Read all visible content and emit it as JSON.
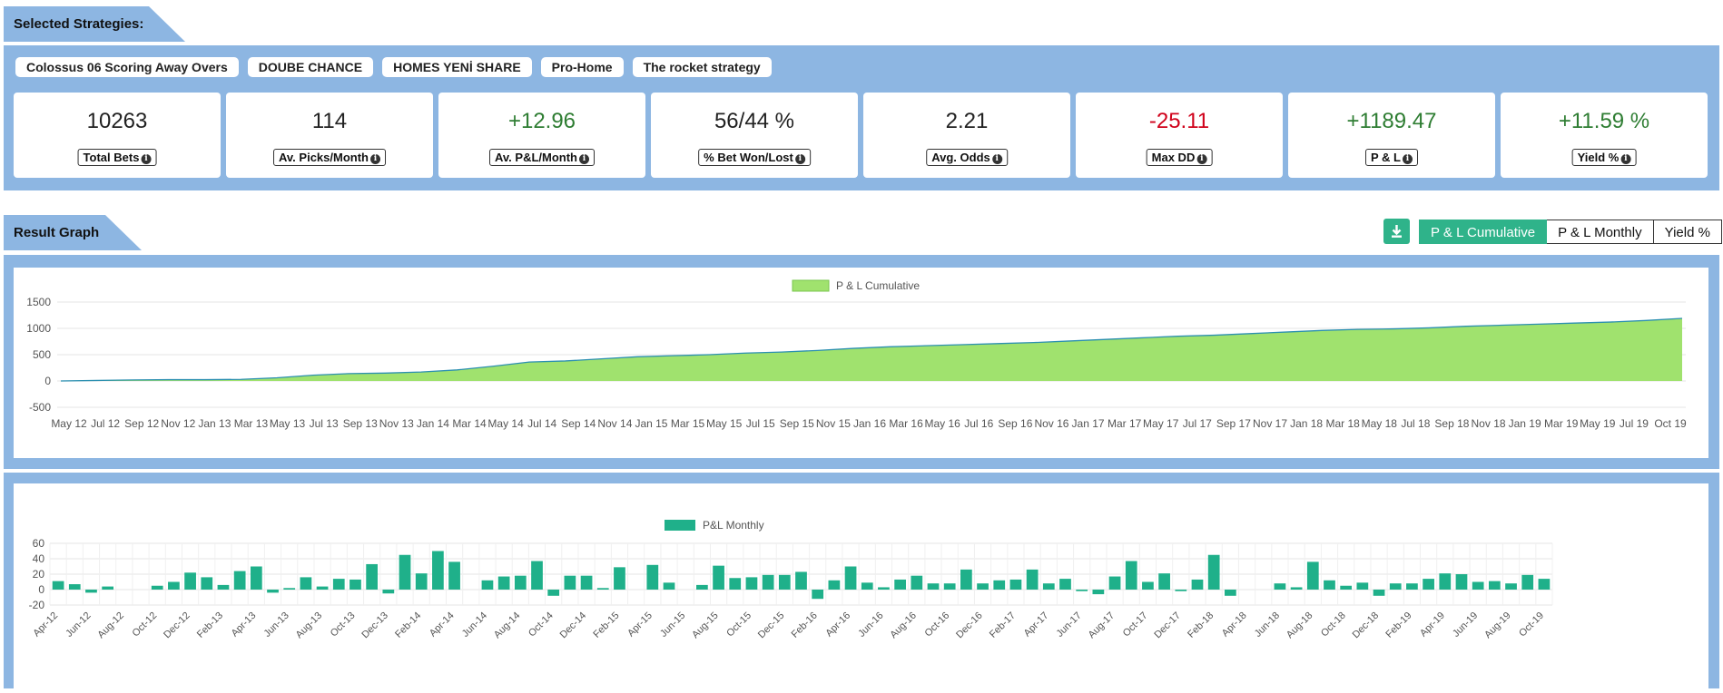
{
  "sections": {
    "strategies_title": "Selected Strategies:",
    "graph_title": "Result Graph"
  },
  "strategies": [
    "Colossus 06 Scoring Away Overs",
    "DOUBE CHANCE",
    "HOMES YENİ SHARE",
    "Pro-Home",
    "The rocket strategy"
  ],
  "stats": [
    {
      "value": "10263",
      "label": "Total Bets",
      "tone": "neutral"
    },
    {
      "value": "114",
      "label": "Av. Picks/Month",
      "tone": "neutral"
    },
    {
      "value": "+12.96",
      "label": "Av. P&L/Month",
      "tone": "positive"
    },
    {
      "value": "56/44 %",
      "label": "% Bet Won/Lost",
      "tone": "neutral"
    },
    {
      "value": "2.21",
      "label": "Avg. Odds",
      "tone": "neutral"
    },
    {
      "value": "-25.11",
      "label": "Max DD",
      "tone": "negative"
    },
    {
      "value": "+1189.47",
      "label": "P & L",
      "tone": "positive"
    },
    {
      "value": "+11.59 %",
      "label": "Yield %",
      "tone": "positive"
    }
  ],
  "graph_controls": {
    "download_icon": "download-icon",
    "buttons": [
      "P & L Cumulative",
      "P & L Monthly",
      "Yield %"
    ],
    "active": "P & L Cumulative"
  },
  "colors": {
    "accent": "#2fb38a",
    "panel": "#8db6e2",
    "positive": "#2e7d32",
    "negative": "#d0021b",
    "area_fill": "#a0e26e",
    "area_line": "#2b8fb0",
    "bar": "#1fb08a"
  },
  "chart_data": [
    {
      "type": "area",
      "legend": "P & L Cumulative",
      "legend_position": "top-center",
      "grid": true,
      "ylim": [
        -500,
        1500
      ],
      "yticks": [
        1500,
        1000,
        500,
        0,
        -500
      ],
      "xticks": [
        "May 12",
        "Jul 12",
        "Sep 12",
        "Nov 12",
        "Jan 13",
        "Mar 13",
        "May 13",
        "Jul 13",
        "Sep 13",
        "Nov 13",
        "Jan 14",
        "Mar 14",
        "May 14",
        "Jul 14",
        "Sep 14",
        "Nov 14",
        "Jan 15",
        "Mar 15",
        "May 15",
        "Jul 15",
        "Sep 15",
        "Nov 15",
        "Jan 16",
        "Mar 16",
        "May 16",
        "Jul 16",
        "Sep 16",
        "Nov 16",
        "Jan 17",
        "Mar 17",
        "May 17",
        "Jul 17",
        "Sep 17",
        "Nov 17",
        "Jan 18",
        "Mar 18",
        "May 18",
        "Jul 18",
        "Sep 18",
        "Nov 18",
        "Jan 19",
        "Mar 19",
        "May 19",
        "Jul 19",
        "Oct 19"
      ],
      "x": [
        "Apr 12",
        "May 12",
        "Jul 12",
        "Sep 12",
        "Nov 12",
        "Jan 13",
        "Mar 13",
        "May 13",
        "Jul 13",
        "Sep 13",
        "Nov 13",
        "Jan 14",
        "Mar 14",
        "May 14",
        "Jul 14",
        "Sep 14",
        "Nov 14",
        "Jan 15",
        "Mar 15",
        "May 15",
        "Jul 15",
        "Sep 15",
        "Nov 15",
        "Jan 16",
        "Mar 16",
        "May 16",
        "Jul 16",
        "Sep 16",
        "Nov 16",
        "Jan 17",
        "Mar 17",
        "May 17",
        "Jul 17",
        "Sep 17",
        "Nov 17",
        "Jan 18",
        "Mar 18",
        "May 18",
        "Jul 18",
        "Sep 18",
        "Nov 18",
        "Jan 19",
        "Mar 19",
        "May 19",
        "Jul 19",
        "Oct 19"
      ],
      "values": [
        0,
        10,
        20,
        25,
        25,
        30,
        60,
        110,
        140,
        150,
        170,
        210,
        280,
        360,
        380,
        420,
        460,
        480,
        500,
        530,
        550,
        580,
        620,
        650,
        670,
        690,
        710,
        730,
        760,
        790,
        820,
        850,
        870,
        900,
        930,
        960,
        980,
        990,
        1010,
        1040,
        1060,
        1080,
        1100,
        1120,
        1150,
        1189
      ]
    },
    {
      "type": "bar",
      "legend": "P&L Monthly",
      "legend_position": "top-center",
      "grid": true,
      "ylim": [
        -20,
        60
      ],
      "yticks": [
        60,
        40,
        20,
        0,
        -20
      ],
      "categories": [
        "Apr-12",
        "May-12",
        "Jun-12",
        "Jul-12",
        "Aug-12",
        "Sep-12",
        "Oct-12",
        "Nov-12",
        "Dec-12",
        "Jan-13",
        "Feb-13",
        "Mar-13",
        "Apr-13",
        "May-13",
        "Jun-13",
        "Jul-13",
        "Aug-13",
        "Sep-13",
        "Oct-13",
        "Nov-13",
        "Dec-13",
        "Jan-14",
        "Feb-14",
        "Mar-14",
        "Apr-14",
        "May-14",
        "Jun-14",
        "Jul-14",
        "Aug-14",
        "Sep-14",
        "Oct-14",
        "Nov-14",
        "Dec-14",
        "Jan-15",
        "Feb-15",
        "Mar-15",
        "Apr-15",
        "May-15",
        "Jun-15",
        "Jul-15",
        "Aug-15",
        "Sep-15",
        "Oct-15",
        "Nov-15",
        "Dec-15",
        "Jan-16",
        "Feb-16",
        "Mar-16",
        "Apr-16",
        "May-16",
        "Jun-16",
        "Jul-16",
        "Aug-16",
        "Sep-16",
        "Oct-16",
        "Nov-16",
        "Dec-16",
        "Jan-17",
        "Feb-17",
        "Mar-17",
        "Apr-17",
        "May-17",
        "Jun-17",
        "Jul-17",
        "Aug-17",
        "Sep-17",
        "Oct-17",
        "Nov-17",
        "Dec-17",
        "Jan-18",
        "Feb-18",
        "Mar-18",
        "Apr-18",
        "May-18",
        "Jun-18",
        "Jul-18",
        "Aug-18",
        "Sep-18",
        "Oct-18",
        "Nov-18",
        "Dec-18",
        "Jan-19",
        "Feb-19",
        "Mar-19",
        "Apr-19",
        "May-19",
        "Jun-19",
        "Jul-19",
        "Aug-19",
        "Sep-19",
        "Oct-19"
      ],
      "tick_labels": [
        "Apr-12",
        "Jun-12",
        "Aug-12",
        "Oct-12",
        "Dec-12",
        "Feb-13",
        "Apr-13",
        "Jun-13",
        "Aug-13",
        "Oct-13",
        "Dec-13",
        "Feb-14",
        "Apr-14",
        "Jun-14",
        "Aug-14",
        "Oct-14",
        "Dec-14",
        "Feb-15",
        "Apr-15",
        "Jun-15",
        "Aug-15",
        "Oct-15",
        "Dec-15",
        "Feb-16",
        "Apr-16",
        "Jun-16",
        "Aug-16",
        "Oct-16",
        "Dec-16",
        "Feb-17",
        "Apr-17",
        "Jun-17",
        "Aug-17",
        "Oct-17",
        "Dec-17",
        "Feb-18",
        "Apr-18",
        "Jun-18",
        "Aug-18",
        "Oct-18",
        "Dec-18",
        "Feb-19",
        "Apr-19",
        "Jun-19",
        "Aug-19",
        "Oct-19"
      ],
      "values": [
        11,
        7,
        -4,
        4,
        0,
        0,
        5,
        10,
        22,
        16,
        6,
        24,
        30,
        -4,
        2,
        16,
        4,
        14,
        13,
        33,
        -5,
        45,
        21,
        50,
        36,
        0,
        12,
        17,
        18,
        37,
        -8,
        18,
        18,
        2,
        29,
        0,
        32,
        9,
        0,
        6,
        31,
        15,
        16,
        19,
        19,
        23,
        -12,
        12,
        30,
        9,
        3,
        13,
        18,
        8,
        8,
        26,
        8,
        12,
        13,
        26,
        8,
        14,
        -2,
        -6,
        17,
        37,
        10,
        21,
        -2,
        13,
        45,
        -8,
        0,
        0,
        8,
        3,
        36,
        12,
        5,
        9,
        -8,
        8,
        8,
        14,
        21,
        20,
        10,
        11,
        8,
        19,
        14
      ]
    }
  ]
}
